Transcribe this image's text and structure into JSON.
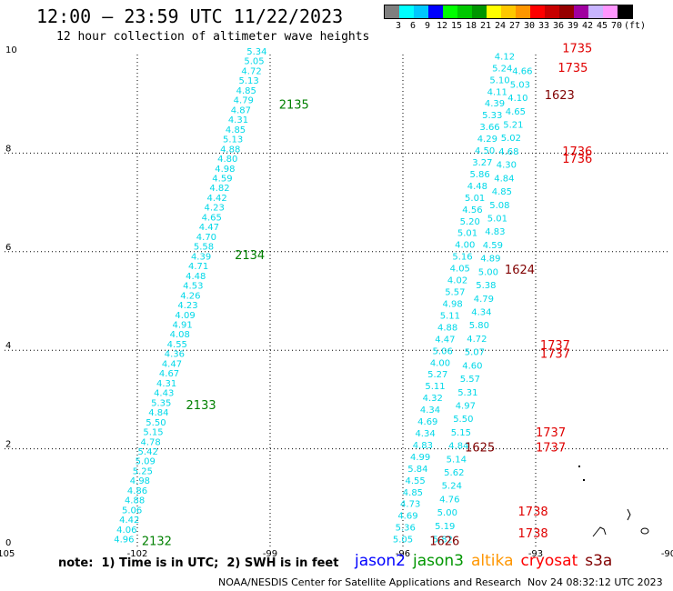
{
  "header": {
    "title": "12:00 – 23:59 UTC 11/22/2023",
    "subtitle": "12 hour collection of altimeter wave heights"
  },
  "legend": {
    "labels": [
      "3",
      "6",
      "9",
      "12",
      "15",
      "18",
      "21",
      "24",
      "27",
      "30",
      "33",
      "36",
      "39",
      "42",
      "45",
      "70",
      "(ft)"
    ],
    "colors": [
      "#7f7f7f",
      "#00ffff",
      "#00c8ff",
      "#0000ff",
      "#00ff00",
      "#00c800",
      "#009600",
      "#ffff00",
      "#ffc800",
      "#ff9600",
      "#ff0000",
      "#c80000",
      "#960000",
      "#a000a0",
      "#c8b4ff",
      "#ff96ff",
      "#000000"
    ]
  },
  "chart_data": {
    "type": "scatter",
    "xlim": [
      -105,
      -90
    ],
    "ylim": [
      0,
      10
    ],
    "x_ticks": [
      "-105",
      "-102",
      "-99",
      "-96",
      "-93",
      "-90"
    ],
    "y_ticks": [
      "0",
      "2",
      "4",
      "6",
      "8",
      "10"
    ],
    "colors": {
      "swh": "#00d8e8",
      "jason3": "#008000",
      "cryosat": "#e00000",
      "altika_dark": "#800000"
    },
    "tracks": [
      {
        "name": "A",
        "values": [
          "4.96",
          "4.06",
          "4.42",
          "5.06",
          "4.88",
          "4.86",
          "4.98",
          "5.25",
          "5.09",
          "5.42",
          "4.78",
          "5.15",
          "5.50",
          "4.84",
          "5.35",
          "4.43",
          "4.31",
          "4.67",
          "4.47",
          "4.36",
          "4.55",
          "4.08",
          "4.91",
          "4.09",
          "4.23",
          "4.26",
          "4.53",
          "4.48",
          "4.71",
          "4.39",
          "5.58",
          "4.70",
          "4.47",
          "4.65",
          "4.23",
          "4.42",
          "4.82",
          "4.59",
          "4.98",
          "4.80",
          "4.88",
          "5.13",
          "4.85",
          "4.31",
          "4.87",
          "4.79",
          "4.85",
          "5.13",
          "4.72",
          "5.05",
          "5.34"
        ],
        "lon_start": -102.3,
        "lat_start": 0.1,
        "lon_end": -99.3,
        "lat_end": 10.0
      },
      {
        "name": "B",
        "values": [
          "5.05",
          "5.36",
          "4.69",
          "4.73",
          "4.85",
          "4.55",
          "5.84",
          "4.99",
          "4.83",
          "4.34",
          "4.69",
          "4.34",
          "4.32",
          "5.11",
          "5.27",
          "4.00",
          "5.06",
          "4.47",
          "4.88",
          "5.11",
          "4.98",
          "5.57",
          "4.02",
          "4.05",
          "5.16",
          "4.00",
          "5.01",
          "5.20",
          "4.56",
          "5.01",
          "4.48",
          "5.86",
          "3.27",
          "4.50",
          "4.29",
          "3.66",
          "5.33",
          "4.39",
          "4.11",
          "5.10",
          "5.24",
          "4.12"
        ],
        "lon_start": -96.0,
        "lat_start": 0.1,
        "lon_end": -93.7,
        "lat_end": 9.9
      },
      {
        "name": "C",
        "values": [
          "5.82",
          "5.19",
          "5.00",
          "4.76",
          "5.24",
          "5.62",
          "5.14",
          "4.84",
          "5.15",
          "5.50",
          "4.97",
          "5.31",
          "5.57",
          "4.60",
          "5.07",
          "4.72",
          "5.80",
          "4.34",
          "4.79",
          "5.38",
          "5.00",
          "4.89",
          "4.59",
          "4.83",
          "5.01",
          "5.08",
          "4.85",
          "4.84",
          "4.30",
          "4.68",
          "5.02",
          "5.21",
          "4.65",
          "4.10",
          "5.03",
          "4.66"
        ],
        "lon_start": -95.1,
        "lat_start": 0.1,
        "lon_end": -93.3,
        "lat_end": 9.6
      }
    ],
    "pass_labels": [
      {
        "text": "2132",
        "lon": -101.9,
        "lat": 0.05,
        "sat": "jason3"
      },
      {
        "text": "2133",
        "lon": -100.9,
        "lat": 2.8,
        "sat": "jason3"
      },
      {
        "text": "2134",
        "lon": -99.8,
        "lat": 5.85,
        "sat": "jason3"
      },
      {
        "text": "2135",
        "lon": -98.8,
        "lat": 8.9,
        "sat": "jason3"
      },
      {
        "text": "1626",
        "lon": -95.4,
        "lat": 0.05,
        "sat": "altika_dark"
      },
      {
        "text": "1625",
        "lon": -94.6,
        "lat": 1.95,
        "sat": "altika_dark"
      },
      {
        "text": "1624",
        "lon": -93.7,
        "lat": 5.55,
        "sat": "altika_dark"
      },
      {
        "text": "1623",
        "lon": -92.8,
        "lat": 9.1,
        "sat": "altika_dark"
      },
      {
        "text": "1738",
        "lon": -93.4,
        "lat": 0.2,
        "sat": "cryosat"
      },
      {
        "text": "1738",
        "lon": -93.4,
        "lat": 0.65,
        "sat": "cryosat"
      },
      {
        "text": "1737",
        "lon": -93.0,
        "lat": 1.95,
        "sat": "cryosat"
      },
      {
        "text": "1737",
        "lon": -93.0,
        "lat": 2.25,
        "sat": "cryosat"
      },
      {
        "text": "1737",
        "lon": -92.9,
        "lat": 3.85,
        "sat": "cryosat"
      },
      {
        "text": "1737",
        "lon": -92.9,
        "lat": 4.02,
        "sat": "cryosat"
      },
      {
        "text": "1736",
        "lon": -92.4,
        "lat": 7.8,
        "sat": "cryosat"
      },
      {
        "text": "1736",
        "lon": -92.4,
        "lat": 7.95,
        "sat": "cryosat"
      },
      {
        "text": "1735",
        "lon": -92.5,
        "lat": 9.65,
        "sat": "cryosat"
      },
      {
        "text": "1735",
        "lon": -92.4,
        "lat": 10.05,
        "sat": "cryosat"
      }
    ]
  },
  "footer": {
    "note": "note:  1) Time is in UTC;  2) SWH is in feet",
    "satellites": [
      {
        "name": "jason2",
        "color": "#0000ff"
      },
      {
        "name": "jason3",
        "color": "#009600"
      },
      {
        "name": "altika",
        "color": "#ff9600"
      },
      {
        "name": "cryosat",
        "color": "#ff0000"
      },
      {
        "name": "s3a",
        "color": "#800000"
      }
    ],
    "credit": "NOAA/NESDIS Center for Satellite Applications and Research",
    "timestamp": "Nov 24 08:32:12 UTC 2023"
  }
}
